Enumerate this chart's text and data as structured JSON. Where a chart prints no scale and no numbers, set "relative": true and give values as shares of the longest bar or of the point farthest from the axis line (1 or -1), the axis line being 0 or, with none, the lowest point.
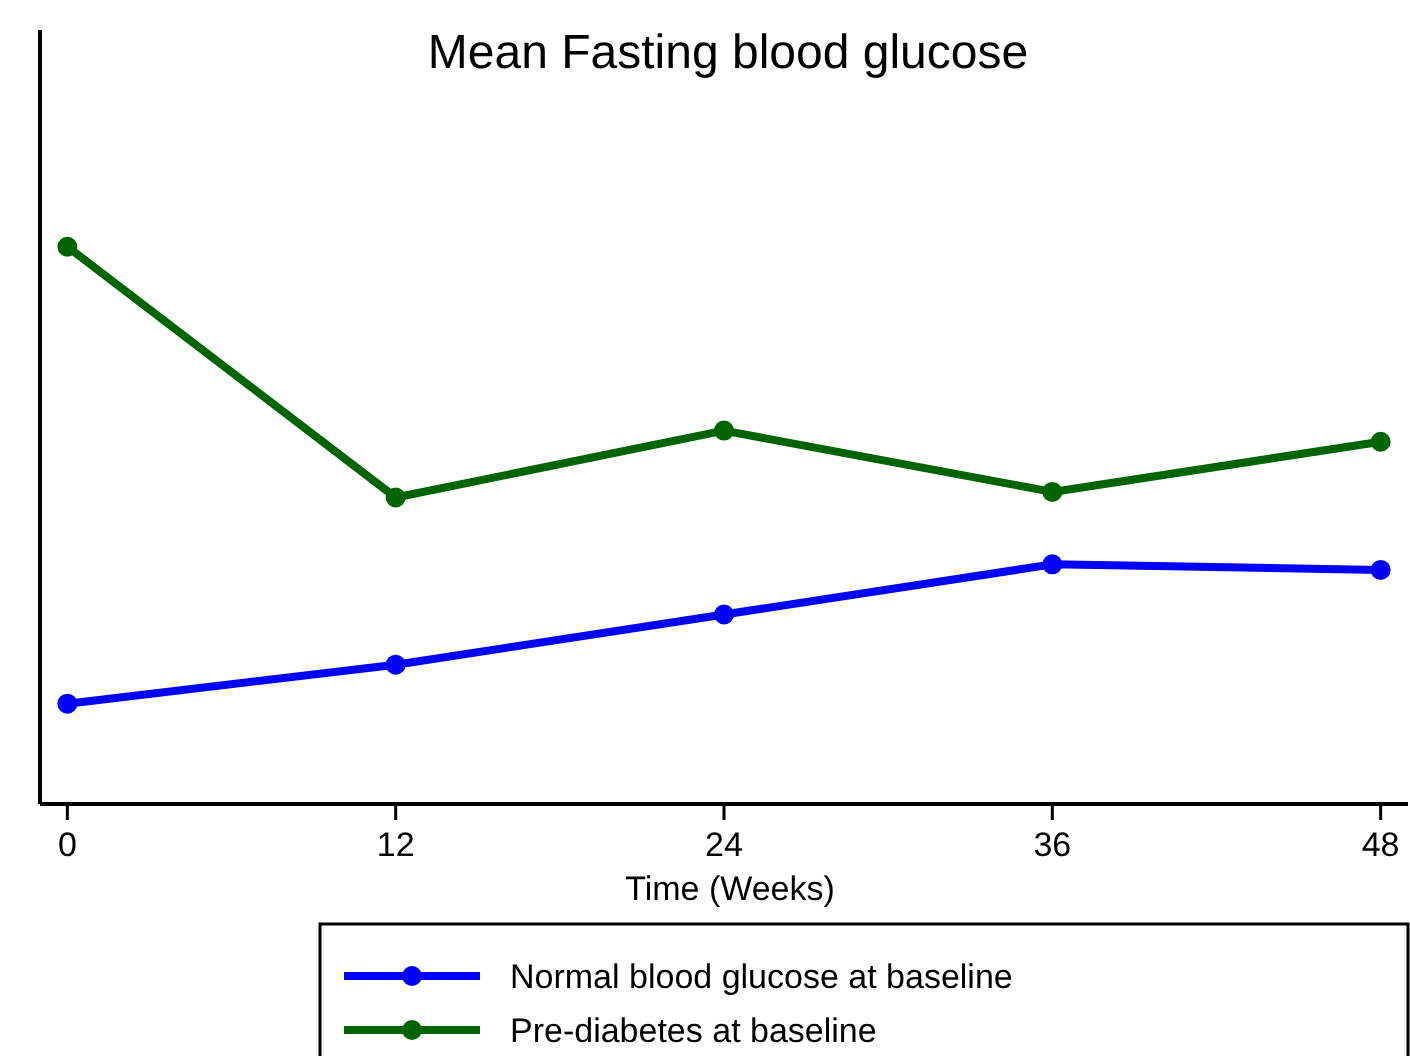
{
  "chart_data": {
    "type": "line",
    "title": "Mean Fasting blood glucose",
    "xlabel": "Time (Weeks)",
    "x": [
      0,
      12,
      24,
      36,
      48
    ],
    "xlim": [
      -1,
      49
    ],
    "xticks": [
      0,
      12,
      24,
      36,
      48
    ],
    "relative": true,
    "series": [
      {
        "name": "Normal blood glucose at baseline",
        "color": "#0000ff",
        "values": [
          0.18,
          0.25,
          0.34,
          0.43,
          0.42
        ]
      },
      {
        "name": "Pre-diabetes at baseline",
        "color": "#006400",
        "values": [
          1,
          0.55,
          0.67,
          0.56,
          0.65
        ]
      }
    ],
    "marker": "circle",
    "line_style": "solid",
    "legend": "bottom",
    "grid": false
  }
}
